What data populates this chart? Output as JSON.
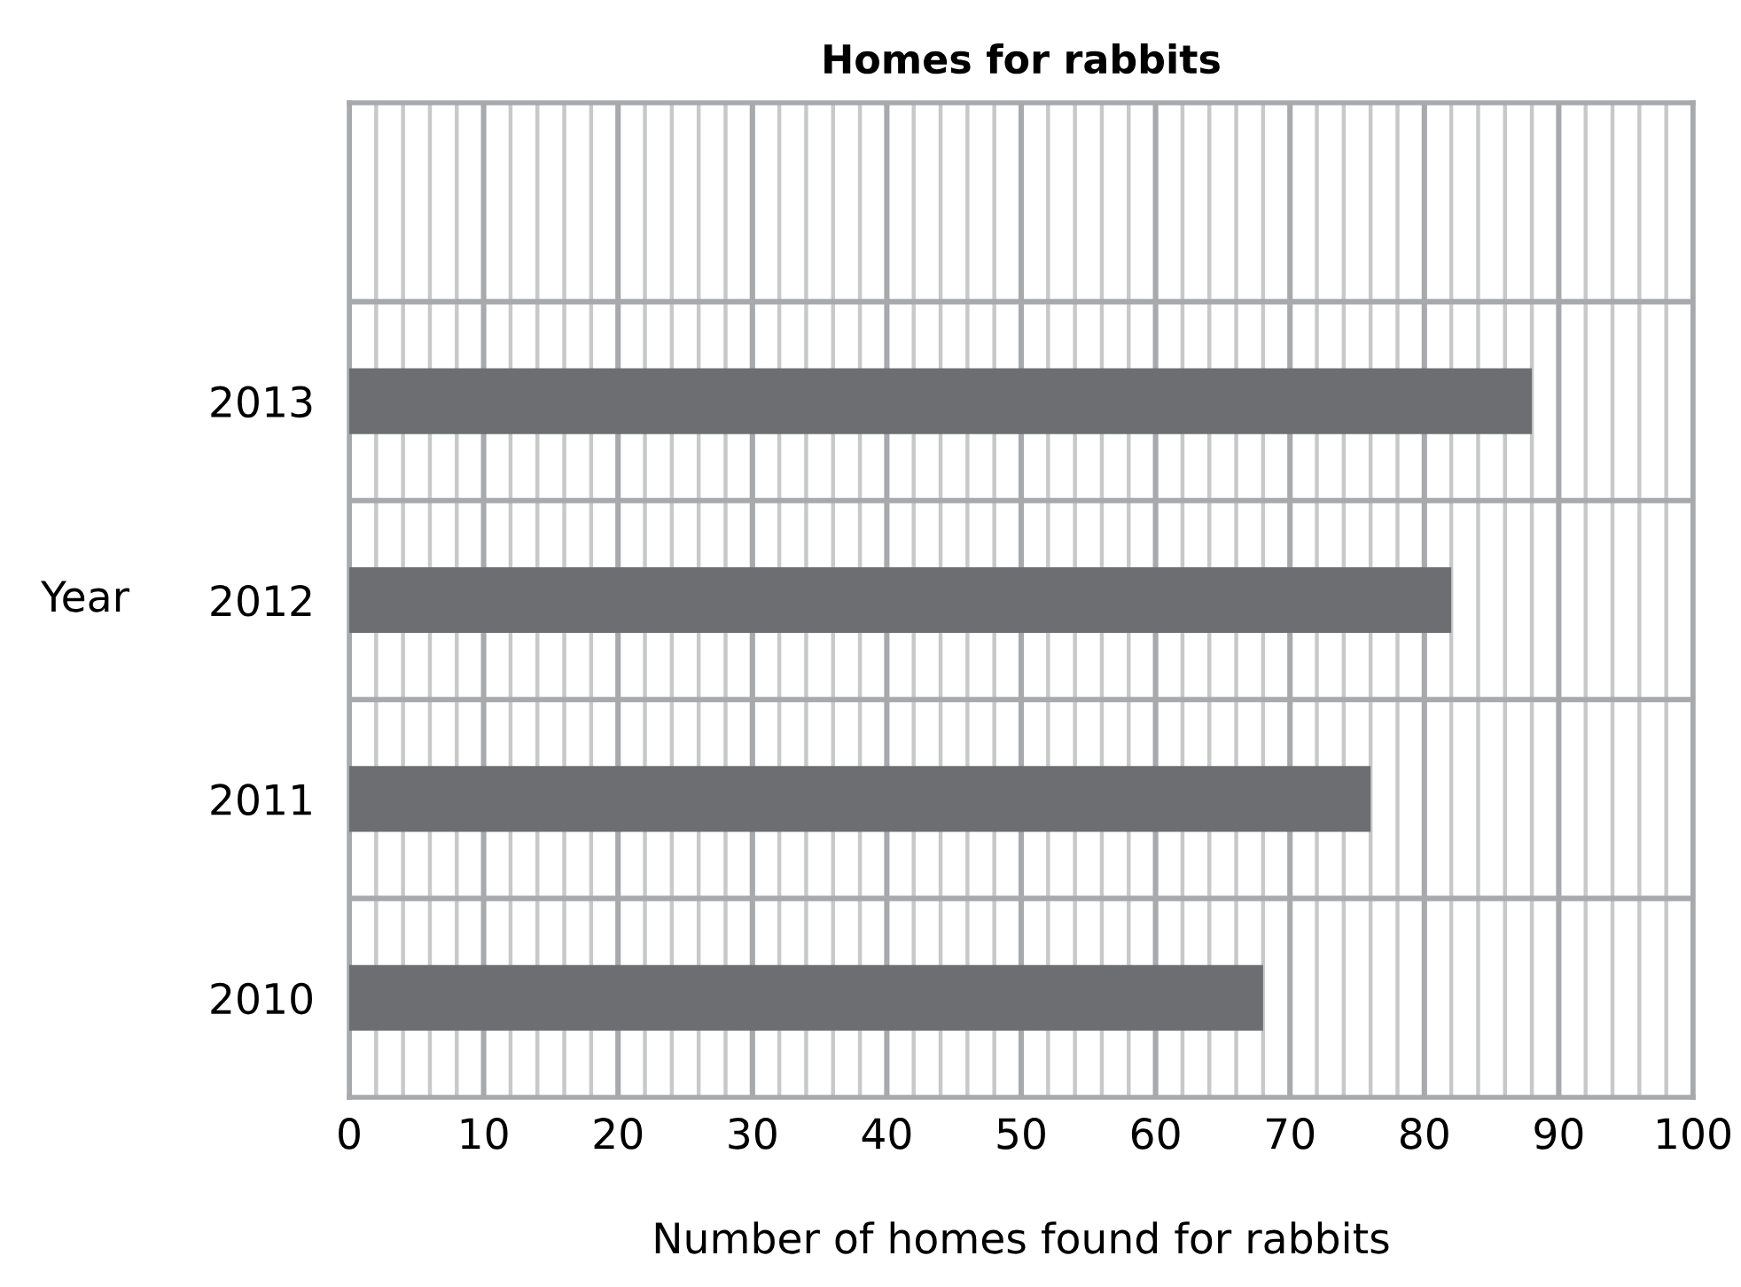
{
  "chart_data": {
    "type": "bar",
    "orientation": "horizontal",
    "title": "Homes for rabbits",
    "xlabel": "Number of homes found for rabbits",
    "ylabel": "Year",
    "categories": [
      null,
      "2013",
      "2012",
      "2011",
      "2010"
    ],
    "values": [
      null,
      88,
      82,
      76,
      68
    ],
    "color": "#6d6e71",
    "xlim": [
      0,
      100
    ],
    "xticks": [
      0,
      {
        "value": 2,
        "label": null
      },
      {
        "value": 4,
        "label": null
      },
      {
        "value": 6,
        "label": null
      },
      {
        "value": 8,
        "label": null
      },
      10,
      {
        "value": 12,
        "label": null
      },
      {
        "value": 14,
        "label": null
      },
      {
        "value": 16,
        "label": null
      },
      {
        "value": 18,
        "label": null
      },
      20,
      {
        "value": 22,
        "label": null
      },
      {
        "value": 24,
        "label": null
      },
      {
        "value": 26,
        "label": null
      },
      {
        "value": 28,
        "label": null
      },
      30,
      {
        "value": 32,
        "label": null
      },
      {
        "value": 34,
        "label": null
      },
      {
        "value": 36,
        "label": null
      },
      {
        "value": 38,
        "label": null
      },
      40,
      {
        "value": 42,
        "label": null
      },
      {
        "value": 44,
        "label": null
      },
      {
        "value": 46,
        "label": null
      },
      {
        "value": 48,
        "label": null
      },
      50,
      {
        "value": 52,
        "label": null
      },
      {
        "value": 54,
        "label": null
      },
      {
        "value": 56,
        "label": null
      },
      {
        "value": 58,
        "label": null
      },
      60,
      {
        "value": 62,
        "label": null
      },
      {
        "value": 64,
        "label": null
      },
      {
        "value": 66,
        "label": null
      },
      {
        "value": 68,
        "label": null
      },
      70,
      {
        "value": 72,
        "label": null
      },
      {
        "value": 74,
        "label": null
      },
      {
        "value": 76,
        "label": null
      },
      {
        "value": 78,
        "label": null
      },
      80,
      {
        "value": 82,
        "label": null
      },
      {
        "value": 84,
        "label": null
      },
      {
        "value": 86,
        "label": null
      },
      {
        "value": 88,
        "label": null
      },
      90,
      {
        "value": 92,
        "label": null
      },
      {
        "value": 94,
        "label": null
      },
      {
        "value": 96,
        "label": null
      },
      {
        "value": 98,
        "label": null
      },
      100
    ],
    "grid": true
  }
}
